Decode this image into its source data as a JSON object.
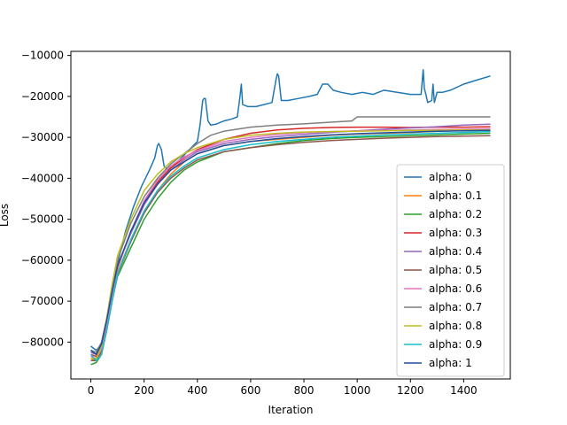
{
  "chart_data": {
    "type": "line",
    "xlabel": "Iteration",
    "ylabel": "Loss",
    "xlim": [
      -75,
      1575
    ],
    "ylim": [
      -89000,
      -9000
    ],
    "xticks": [
      0,
      200,
      400,
      600,
      800,
      1000,
      1200,
      1400
    ],
    "xtick_labels": [
      "0",
      "200",
      "400",
      "600",
      "800",
      "1000",
      "1200",
      "1400"
    ],
    "yticks": [
      -80000,
      -70000,
      -60000,
      -50000,
      -40000,
      -30000,
      -20000,
      -10000
    ],
    "ytick_labels": [
      "−80000",
      "−70000",
      "−60000",
      "−50000",
      "−40000",
      "−30000",
      "−20000",
      "−10000"
    ],
    "legend_position": "lower-right",
    "grid": false,
    "series": [
      {
        "name": "alpha: 0",
        "color": "#1f77b4",
        "x": [
          0,
          20,
          40,
          60,
          80,
          100,
          130,
          160,
          190,
          220,
          240,
          250,
          255,
          265,
          275,
          290,
          310,
          340,
          370,
          400,
          410,
          420,
          425,
          430,
          440,
          450,
          470,
          500,
          530,
          550,
          560,
          565,
          570,
          590,
          620,
          650,
          680,
          695,
          700,
          705,
          715,
          740,
          780,
          820,
          850,
          870,
          890,
          910,
          940,
          980,
          1020,
          1060,
          1100,
          1150,
          1200,
          1240,
          1248,
          1252,
          1258,
          1265,
          1280,
          1285,
          1290,
          1300,
          1320,
          1350,
          1400,
          1450,
          1500
        ],
        "y": [
          -81000,
          -82000,
          -80500,
          -75000,
          -68000,
          -61000,
          -53000,
          -47000,
          -42000,
          -38000,
          -35000,
          -32000,
          -31500,
          -33000,
          -37000,
          -38000,
          -37000,
          -35000,
          -33000,
          -31000,
          -27000,
          -21000,
          -20500,
          -20500,
          -26000,
          -27000,
          -26800,
          -26000,
          -25500,
          -25000,
          -20000,
          -17000,
          -22000,
          -22500,
          -22500,
          -22000,
          -21500,
          -16000,
          -14500,
          -15000,
          -21000,
          -21000,
          -20500,
          -20000,
          -19500,
          -17000,
          -17000,
          -18500,
          -19000,
          -19500,
          -19000,
          -19500,
          -18500,
          -19000,
          -19500,
          -19500,
          -13500,
          -18000,
          -19500,
          -21500,
          -21000,
          -17000,
          -21500,
          -19000,
          -19000,
          -18500,
          -17000,
          -16000,
          -15000
        ]
      },
      {
        "name": "alpha: 0.1",
        "color": "#ff7f0e",
        "x": [
          0,
          20,
          40,
          60,
          80,
          100,
          150,
          200,
          250,
          300,
          350,
          400,
          500,
          600,
          700,
          800,
          900,
          1000,
          1100,
          1200,
          1300,
          1400,
          1500
        ],
        "y": [
          -84000,
          -84500,
          -82000,
          -76000,
          -69000,
          -63000,
          -55000,
          -48000,
          -43000,
          -39000,
          -36000,
          -34000,
          -32000,
          -31000,
          -30500,
          -30000,
          -29500,
          -29200,
          -29000,
          -28800,
          -28500,
          -28300,
          -28000
        ]
      },
      {
        "name": "alpha: 0.2",
        "color": "#2ca02c",
        "x": [
          0,
          20,
          40,
          60,
          80,
          100,
          150,
          200,
          250,
          300,
          350,
          400,
          500,
          600,
          700,
          800,
          900,
          1000,
          1100,
          1200,
          1300,
          1400,
          1500
        ],
        "y": [
          -85500,
          -85000,
          -83000,
          -77000,
          -70000,
          -64000,
          -57000,
          -50000,
          -45000,
          -41000,
          -38000,
          -36000,
          -33500,
          -32500,
          -31500,
          -30800,
          -30300,
          -30000,
          -29800,
          -29600,
          -29400,
          -29200,
          -29000
        ]
      },
      {
        "name": "alpha: 0.3",
        "color": "#d62728",
        "x": [
          0,
          20,
          40,
          60,
          80,
          100,
          150,
          200,
          250,
          300,
          350,
          400,
          500,
          600,
          700,
          800,
          900,
          1000,
          1100,
          1200,
          1300,
          1400,
          1500
        ],
        "y": [
          -83000,
          -83500,
          -81000,
          -75000,
          -68000,
          -62000,
          -53000,
          -46000,
          -41000,
          -37500,
          -35000,
          -33000,
          -30500,
          -29000,
          -28200,
          -27800,
          -27600,
          -27500,
          -27500,
          -27600,
          -27500,
          -27500,
          -27400
        ]
      },
      {
        "name": "alpha: 0.4",
        "color": "#9467bd",
        "x": [
          0,
          20,
          40,
          60,
          80,
          100,
          150,
          200,
          250,
          300,
          350,
          400,
          500,
          600,
          700,
          800,
          900,
          1000,
          1100,
          1200,
          1300,
          1400,
          1500
        ],
        "y": [
          -82500,
          -83000,
          -80500,
          -74500,
          -67500,
          -61500,
          -53500,
          -46500,
          -41500,
          -38000,
          -35500,
          -33500,
          -31500,
          -30500,
          -29800,
          -29300,
          -28800,
          -28400,
          -28000,
          -27700,
          -27400,
          -27000,
          -26800
        ]
      },
      {
        "name": "alpha: 0.5",
        "color": "#8c564b",
        "x": [
          0,
          20,
          40,
          60,
          80,
          100,
          150,
          200,
          250,
          300,
          350,
          400,
          500,
          600,
          700,
          800,
          900,
          1000,
          1100,
          1200,
          1300,
          1400,
          1500
        ],
        "y": [
          -84500,
          -84500,
          -82500,
          -76500,
          -69500,
          -63500,
          -55500,
          -48500,
          -43500,
          -40000,
          -37500,
          -35500,
          -33500,
          -32500,
          -31800,
          -31200,
          -30800,
          -30500,
          -30200,
          -30000,
          -29800,
          -29700,
          -29600
        ]
      },
      {
        "name": "alpha: 0.6",
        "color": "#e377c2",
        "x": [
          0,
          20,
          40,
          60,
          80,
          100,
          150,
          200,
          250,
          300,
          350,
          400,
          500,
          600,
          700,
          800,
          900,
          1000,
          1100,
          1200,
          1300,
          1400,
          1500
        ],
        "y": [
          -83500,
          -84000,
          -81500,
          -75500,
          -68500,
          -62000,
          -53000,
          -45500,
          -40500,
          -37000,
          -34800,
          -33200,
          -31000,
          -30000,
          -29300,
          -28900,
          -28600,
          -28400,
          -28300,
          -28200,
          -28100,
          -28000,
          -27900
        ]
      },
      {
        "name": "alpha: 0.7",
        "color": "#7f7f7f",
        "x": [
          0,
          20,
          40,
          60,
          80,
          100,
          150,
          200,
          250,
          300,
          350,
          400,
          450,
          500,
          550,
          600,
          700,
          800,
          900,
          980,
          1000,
          1100,
          1200,
          1300,
          1400,
          1500
        ],
        "y": [
          -82000,
          -82500,
          -80000,
          -74000,
          -66000,
          -60000,
          -51000,
          -44500,
          -40000,
          -36500,
          -34000,
          -31500,
          -29500,
          -28500,
          -28000,
          -27500,
          -27000,
          -26700,
          -26300,
          -26000,
          -25000,
          -25000,
          -25000,
          -25000,
          -25000,
          -25000
        ]
      },
      {
        "name": "alpha: 0.8",
        "color": "#bcbd22",
        "x": [
          0,
          20,
          40,
          60,
          80,
          100,
          150,
          200,
          250,
          300,
          350,
          400,
          500,
          600,
          700,
          800,
          900,
          1000,
          1100,
          1200,
          1300,
          1400,
          1500
        ],
        "y": [
          -84000,
          -84000,
          -81000,
          -74000,
          -66000,
          -59000,
          -50000,
          -43000,
          -39000,
          -36000,
          -34000,
          -32500,
          -30500,
          -29500,
          -29000,
          -28700,
          -28600,
          -28500,
          -28400,
          -28300,
          -28300,
          -28200,
          -28200
        ]
      },
      {
        "name": "alpha: 0.9",
        "color": "#17becf",
        "x": [
          0,
          20,
          40,
          60,
          80,
          100,
          150,
          200,
          250,
          300,
          350,
          400,
          500,
          600,
          700,
          800,
          900,
          1000,
          1100,
          1200,
          1300,
          1400,
          1500
        ],
        "y": [
          -83000,
          -84500,
          -83000,
          -77000,
          -70000,
          -63500,
          -55000,
          -48000,
          -43000,
          -39500,
          -37000,
          -35000,
          -33000,
          -31800,
          -31000,
          -30500,
          -30000,
          -29700,
          -29400,
          -29200,
          -29000,
          -28800,
          -28600
        ]
      },
      {
        "name": "alpha: 1",
        "color": "#1f4e9a",
        "x": [
          0,
          20,
          40,
          60,
          80,
          100,
          150,
          200,
          250,
          300,
          350,
          400,
          500,
          600,
          700,
          800,
          900,
          1000,
          1100,
          1200,
          1300,
          1400,
          1500
        ],
        "y": [
          -82000,
          -83000,
          -80500,
          -74500,
          -67500,
          -61500,
          -53000,
          -46000,
          -41500,
          -38000,
          -36000,
          -34000,
          -32000,
          -31000,
          -30300,
          -29800,
          -29400,
          -29100,
          -28900,
          -28700,
          -28500,
          -28400,
          -28300
        ]
      }
    ]
  }
}
